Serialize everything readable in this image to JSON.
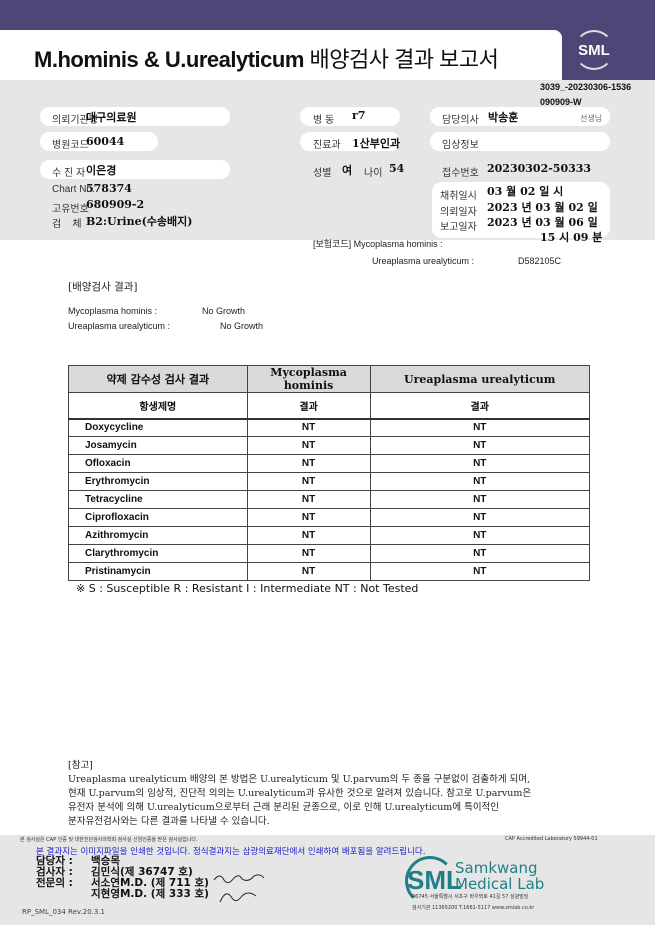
{
  "header": {
    "title_latin": "M.hominis & U.urealyticum",
    "title_korean": "배양검사 결과 보고서",
    "logo": "SML",
    "doc_id": "3039_-20230306-1536",
    "doc_id2": "090909-W"
  },
  "patient": {
    "institution_label": "의뢰기관명",
    "institution": "대구의료원",
    "ward_label": "병  동",
    "ward": "r7",
    "doctor_label": "담당의사",
    "doctor": "박송훈",
    "doctor_suffix": "선생님",
    "hospital_code_label": "병원코드",
    "hospital_code": "60044",
    "dept_label": "진료과",
    "dept": "1산부인과",
    "clinical_label": "임상정보",
    "name_label": "수 진 자",
    "name": "이은경",
    "sex_label": "성별",
    "sex": "여",
    "age_label": "나이",
    "age": "54",
    "receipt_label": "접수번호",
    "receipt": "20230302-50333",
    "chart_label": "Chart No.",
    "chart": "578374",
    "unique_label": "고유번호",
    "unique": "680909-2",
    "specimen_label": "검    체",
    "specimen": "B2:Urine(수송배지)",
    "collect_label": "채취일시",
    "collect": "03 월 02 일 시",
    "request_label": "의뢰일자",
    "request": "2023 년 03 월 02 일",
    "report_label": "보고일자",
    "report": "2023 년 03 월 06 일",
    "report_time": "15 시 09 분"
  },
  "insurance": {
    "label": "[보험코드] Mycoplasma hominis :",
    "uu_label": "Ureaplasma urealyticum :",
    "uu_code": "D582105C"
  },
  "culture": {
    "title": "[배양검사 결과]",
    "mh_label": "Mycoplasma hominis :",
    "mh": "No Growth",
    "uu_label": "Ureaplasma urealyticum :",
    "uu": "No Growth"
  },
  "table": {
    "headers": [
      "약제 감수성 검사 결과",
      "Mycoplasma hominis",
      "Ureaplasma urealyticum"
    ],
    "subheaders": [
      "항생제명",
      "결과",
      "결과"
    ],
    "rows": [
      [
        "Doxycycline",
        "NT",
        "NT"
      ],
      [
        "Josamycin",
        "NT",
        "NT"
      ],
      [
        "Ofloxacin",
        "NT",
        "NT"
      ],
      [
        "Erythromycin",
        "NT",
        "NT"
      ],
      [
        "Tetracycline",
        "NT",
        "NT"
      ],
      [
        "Ciprofloxacin",
        "NT",
        "NT"
      ],
      [
        "Azithromycin",
        "NT",
        "NT"
      ],
      [
        "Clarythromycin",
        "NT",
        "NT"
      ],
      [
        "Pristinamycin",
        "NT",
        "NT"
      ]
    ],
    "legend": "※ S : Susceptible R : Resistant I : Intermediate NT : Not Tested"
  },
  "notes": {
    "title": "[참고]",
    "lines": [
      "Ureaplasma urealyticum 배양의 본 방법은 U.urealyticum 및 U.parvum의 두 종을 구분없이 검출하게 되며,",
      "현재 U.parvum의 임상적, 진단적 의의는 U.urealyticum과 유사한 것으로 알려져 있습니다. 참고로 U.parvum은",
      "유전자 분석에 의해 U.urealyticum으로부터 근래 분리된 균종으로, 이로 인해 U.urealyticum에 특이적인",
      "분자유전검사와는 다른 결과를 나타낼 수 있습니다."
    ]
  },
  "footer": {
    "small_notice": "본 검사실은 CAP 인증 및 대한진단검사의학회 검사실 신임인증을 받은 검사실입니다.",
    "cap": "CAP Accredited Laboratory 59944-01",
    "image_notice": "본 결과지는 이미지파일을 인쇄한 것입니다. 정식결과지는 삼광의료재단에서 인쇄하여 배포됨을 알려드립니다.",
    "staff": [
      {
        "role": "담당자 :",
        "name": "백승목"
      },
      {
        "role": "검사자 :",
        "name": "김민식(제 36747 호)"
      },
      {
        "role": "전문의 :",
        "name": "서소연M.D. (제 711 호)"
      },
      {
        "role": "",
        "name": "지현영M.D. (제 333 호)"
      }
    ],
    "lab_name1": "Samkwang",
    "lab_name2": "Medical Lab",
    "lab_logo": "SML",
    "address": "06745 서울특별시 서초구 바우뫼로 41길 57 삼광빌딩",
    "contact": "검사기관 11365200 T.1661-5117 www.smlab.co.kr",
    "form_code": "RP_SML_034 Rev.20.3.1",
    "colors": {
      "brand": "#4c4776",
      "teal": "#1f7f86",
      "notice_blue": "#1c1cc8"
    }
  }
}
